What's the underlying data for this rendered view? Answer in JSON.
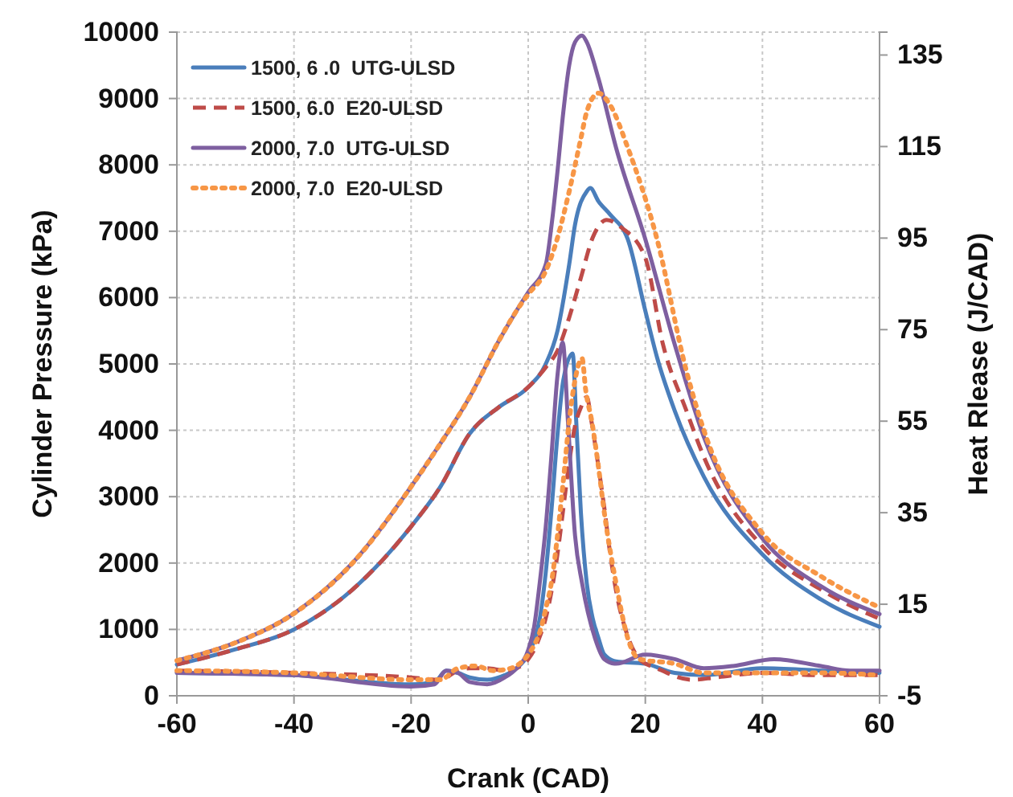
{
  "chart_data": {
    "type": "line",
    "xlabel": "Crank (CAD)",
    "ylabel": "Cylinder Pressure (kPa)",
    "y2label": "Heat Rlease (J/CAD)",
    "xlim": [
      -60,
      60
    ],
    "xticks": [
      -60,
      -40,
      -20,
      0,
      20,
      40,
      60
    ],
    "ylim": [
      0,
      10000
    ],
    "yticks": [
      0,
      1000,
      2000,
      3000,
      4000,
      5000,
      6000,
      7000,
      8000,
      9000,
      10000
    ],
    "y2lim": [
      -5,
      140
    ],
    "y2ticks": [
      -5,
      15,
      35,
      55,
      75,
      95,
      115,
      135
    ],
    "grid": true,
    "legend": "top left",
    "marker": "none",
    "series": [
      {
        "name": "1500, 6 .0  UTG-ULSD",
        "color": "#4a7ebb",
        "line_style": "solid",
        "x": [
          -60,
          -50,
          -40,
          -30,
          -20,
          -15,
          -10,
          -5,
          0,
          3,
          5,
          7,
          8,
          10,
          10.6,
          12,
          14,
          17,
          20,
          22,
          25,
          30,
          40,
          50,
          60
        ],
        "values": [
          470,
          700,
          1000,
          1600,
          2550,
          3150,
          3950,
          4350,
          4650,
          5000,
          5500,
          6500,
          7100,
          7600,
          7650,
          7450,
          7250,
          6880,
          5800,
          5100,
          4300,
          3300,
          2130,
          1450,
          1040
        ]
      },
      {
        "name": "1500, 6.0  E20-ULSD",
        "color": "#be4b48",
        "line_style": "dashed",
        "x": [
          -60,
          -50,
          -40,
          -30,
          -20,
          -15,
          -10,
          -5,
          0,
          3,
          5,
          7,
          9,
          11,
          13.4,
          16,
          20,
          23,
          27,
          30,
          40,
          50,
          60
        ],
        "values": [
          470,
          700,
          1000,
          1600,
          2550,
          3150,
          3950,
          4350,
          4650,
          4950,
          5200,
          5700,
          6300,
          6900,
          7170,
          7050,
          6600,
          5300,
          4300,
          3600,
          2250,
          1600,
          1160
        ]
      },
      {
        "name": "2000, 7.0  UTG-ULSD",
        "color": "#7e5fa0",
        "line_style": "solid",
        "x": [
          -60,
          -50,
          -40,
          -30,
          -20,
          -15,
          -10,
          -5,
          -2,
          0,
          3,
          4,
          5,
          6,
          7,
          8,
          9.2,
          10,
          12,
          15,
          20,
          25,
          30,
          40,
          50,
          60
        ],
        "values": [
          530,
          800,
          1240,
          2000,
          3150,
          3800,
          4500,
          5350,
          5800,
          6080,
          6500,
          7100,
          7900,
          8800,
          9500,
          9850,
          9950,
          9850,
          9300,
          8260,
          6880,
          5300,
          3900,
          2370,
          1650,
          1230
        ]
      },
      {
        "name": "2000, 7.0  E20-ULSD",
        "color": "#f79646",
        "line_style": "dotted",
        "x": [
          -60,
          -50,
          -40,
          -30,
          -20,
          -15,
          -10,
          -5,
          -2,
          0,
          3,
          5,
          7,
          9,
          10,
          12,
          14,
          17,
          22,
          27,
          30,
          40,
          50,
          60
        ],
        "values": [
          530,
          800,
          1240,
          2000,
          3150,
          3800,
          4500,
          5350,
          5800,
          6050,
          6400,
          6900,
          7600,
          8400,
          8800,
          9080,
          8900,
          8260,
          6880,
          4900,
          4000,
          2450,
          1800,
          1330
        ]
      },
      {
        "color": "#4a7ebb",
        "line_style": "solid",
        "axis": "y2",
        "x": [
          -60,
          -40,
          -20,
          -16,
          -14,
          -12,
          -10,
          -7,
          -4,
          -2,
          0,
          1,
          2,
          3,
          4,
          5,
          6,
          7.6,
          8.2,
          9,
          10,
          11,
          12,
          13,
          15,
          20,
          25,
          30,
          40,
          50,
          60
        ],
        "values": [
          0,
          -0.5,
          -2.5,
          -2,
          0.5,
          0,
          -1,
          -1.5,
          -0.5,
          1,
          4,
          7,
          12,
          22,
          36,
          52,
          64,
          69.8,
          55,
          35,
          19.6,
          12,
          7.6,
          4,
          2.5,
          2,
          0,
          -0.5,
          1,
          0.5,
          0
        ]
      },
      {
        "color": "#be4b48",
        "line_style": "dashed",
        "axis": "y2",
        "x": [
          -60,
          -40,
          -20,
          -15,
          -12,
          -10,
          -7,
          -4,
          -2,
          0,
          1,
          2,
          3,
          4,
          5,
          6,
          7,
          8,
          9,
          10,
          10.8,
          12,
          13,
          14,
          15,
          17,
          19,
          22,
          28,
          32,
          40,
          50,
          60
        ],
        "values": [
          0.5,
          0,
          -1,
          -1.5,
          0.5,
          1,
          1,
          0.5,
          1,
          3,
          5,
          8,
          12,
          18,
          26,
          36,
          46,
          54,
          58,
          60.3,
          55,
          45,
          36,
          26,
          18,
          8,
          3,
          1,
          -1.5,
          -1,
          0,
          -0.5,
          -0.5
        ]
      },
      {
        "color": "#7e5fa0",
        "line_style": "solid",
        "axis": "y2",
        "x": [
          -60,
          -40,
          -20,
          -16,
          -14,
          -12,
          -10,
          -7,
          -4,
          -2,
          0,
          1,
          2,
          3,
          4,
          5,
          5.9,
          6.8,
          8,
          9.2,
          11.4,
          13,
          15,
          20,
          25,
          30,
          35,
          42,
          50,
          55,
          60
        ],
        "values": [
          0,
          -0.5,
          -3,
          -2.5,
          0.5,
          0,
          -2,
          -2.5,
          -1,
          1,
          5,
          10,
          20,
          32,
          48,
          65,
          72.2,
          54.7,
          30,
          19.6,
          7.6,
          3,
          2,
          4,
          3,
          1,
          1.5,
          3,
          1.5,
          0.5,
          0.5
        ]
      },
      {
        "color": "#f79646",
        "line_style": "dotted",
        "axis": "y2",
        "x": [
          -60,
          -40,
          -20,
          -15,
          -12,
          -9,
          -6,
          -3,
          0,
          1,
          2,
          3,
          4,
          5,
          6,
          7,
          8,
          9.2,
          9.8,
          10.9,
          12,
          13,
          15,
          17,
          19,
          25,
          30,
          40,
          50,
          60
        ],
        "values": [
          0.5,
          0,
          -1.5,
          -1.5,
          1,
          1.5,
          0.5,
          1,
          4,
          6,
          9,
          14,
          20,
          30,
          42,
          55,
          64,
          68.7,
          62,
          54.7,
          45,
          35,
          19.6,
          7.6,
          3,
          2,
          0,
          0,
          0,
          -0.5
        ]
      }
    ]
  }
}
